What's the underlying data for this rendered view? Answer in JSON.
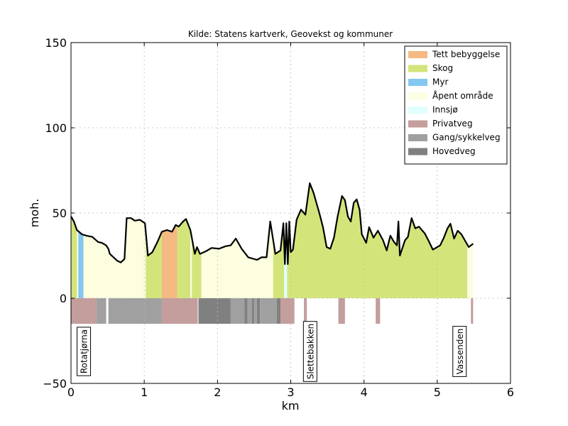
{
  "chart_data": {
    "type": "profile",
    "title": "Kilde: Statens kartverk, Geovekst og kommuner",
    "x_label": "km",
    "y_label": "moh.",
    "xlim": [
      0,
      6
    ],
    "ylim": [
      -50,
      150
    ],
    "xticks": [
      0,
      1,
      2,
      3,
      4,
      5,
      6
    ],
    "yticks": [
      {
        "value": -50,
        "label": "−50"
      },
      0,
      50,
      100,
      150
    ],
    "grid": true,
    "line_color": "#000000",
    "x": [
      0,
      0.04,
      0.08,
      0.15,
      0.21,
      0.29,
      0.37,
      0.42,
      0.48,
      0.51,
      0.53,
      0.63,
      0.68,
      0.73,
      0.76,
      0.82,
      0.87,
      0.94,
      1.01,
      1.05,
      1.11,
      1.18,
      1.24,
      1.31,
      1.38,
      1.43,
      1.47,
      1.53,
      1.57,
      1.63,
      1.69,
      1.72,
      1.76,
      1.84,
      1.92,
      2.02,
      2.11,
      2.18,
      2.25,
      2.33,
      2.42,
      2.54,
      2.6,
      2.67,
      2.72,
      2.79,
      2.86,
      2.9,
      2.92,
      2.94,
      2.96,
      2.98,
      3.0,
      3.03,
      3.08,
      3.14,
      3.2,
      3.26,
      3.31,
      3.39,
      3.44,
      3.49,
      3.54,
      3.59,
      3.64,
      3.7,
      3.74,
      3.78,
      3.82,
      3.86,
      3.9,
      3.94,
      3.97,
      4.03,
      4.07,
      4.13,
      4.19,
      4.26,
      4.31,
      4.36,
      4.41,
      4.45,
      4.47,
      4.49,
      4.56,
      4.6,
      4.65,
      4.7,
      4.75,
      4.83,
      4.89,
      4.94,
      5.04,
      5.09,
      5.14,
      5.18,
      5.23,
      5.28,
      5.33,
      5.43,
      5.49
    ],
    "values": [
      48,
      45,
      40,
      37.5,
      36.7,
      36,
      33,
      32.5,
      31,
      29,
      26,
      22,
      21,
      23,
      47,
      47,
      45.5,
      46,
      44,
      25,
      27,
      33,
      39,
      40,
      39,
      43,
      42,
      45,
      46.5,
      40,
      26,
      30,
      26,
      27.5,
      29.5,
      29,
      30.5,
      31,
      35,
      29,
      24,
      22.5,
      24,
      24,
      45,
      26,
      28,
      44,
      20,
      44,
      20,
      45,
      27,
      28.5,
      46,
      52,
      49,
      67.5,
      62,
      50,
      41.7,
      30,
      29,
      35.5,
      48,
      60,
      57.5,
      48,
      45,
      56,
      58,
      52,
      37.5,
      32.5,
      41.7,
      35.5,
      39.6,
      34,
      28,
      36.7,
      33,
      31,
      45,
      25,
      34,
      36,
      47,
      41,
      42,
      38,
      33,
      28.5,
      31,
      35.5,
      41,
      43.7,
      35,
      39.6,
      37.5,
      30,
      32
    ],
    "classes": [
      {
        "name": "Tett bebyggelse",
        "color": "#f5b982"
      },
      {
        "name": "Skog",
        "color": "#d3e57a"
      },
      {
        "name": "Myr",
        "color": "#82c8f0"
      },
      {
        "name": "Åpent område",
        "color": "#fdfde0"
      },
      {
        "name": "Innsjø",
        "color": "#e0ffff"
      },
      {
        "name": "Privatveg",
        "color": "#c49d9d"
      },
      {
        "name": "Gang/sykkelveg",
        "color": "#a0a0a0"
      },
      {
        "name": "Hovedveg",
        "color": "#808080"
      }
    ],
    "landcover": [
      {
        "start": 0,
        "end": 0.08,
        "class": "Skog"
      },
      {
        "start": 0.08,
        "end": 0.1,
        "class": "Åpent område"
      },
      {
        "start": 0.1,
        "end": 0.17,
        "class": "Myr"
      },
      {
        "start": 0.17,
        "end": 1.02,
        "class": "Åpent område"
      },
      {
        "start": 1.02,
        "end": 1.24,
        "class": "Skog"
      },
      {
        "start": 1.24,
        "end": 1.45,
        "class": "Tett bebyggelse"
      },
      {
        "start": 1.45,
        "end": 1.63,
        "class": "Skog"
      },
      {
        "start": 1.63,
        "end": 1.65,
        "class": "Åpent område"
      },
      {
        "start": 1.65,
        "end": 1.78,
        "class": "Skog"
      },
      {
        "start": 1.78,
        "end": 2.76,
        "class": "Åpent område"
      },
      {
        "start": 2.76,
        "end": 2.91,
        "class": "Skog"
      },
      {
        "start": 2.91,
        "end": 2.95,
        "class": "Innsjø"
      },
      {
        "start": 2.95,
        "end": 5.41,
        "class": "Skog"
      },
      {
        "start": 5.41,
        "end": 5.5,
        "class": "Åpent område"
      }
    ],
    "road_bottom": -15,
    "roads": [
      {
        "start": 0,
        "end": 0.35,
        "class": "Privatveg"
      },
      {
        "start": 0.35,
        "end": 0.48,
        "class": "Gang/sykkelveg"
      },
      {
        "start": 0.51,
        "end": 1.24,
        "class": "Gang/sykkelveg"
      },
      {
        "start": 1.24,
        "end": 1.73,
        "class": "Privatveg"
      },
      {
        "start": 1.74,
        "end": 2.18,
        "class": "Hovedveg"
      },
      {
        "start": 2.18,
        "end": 2.37,
        "class": "Gang/sykkelveg"
      },
      {
        "start": 2.37,
        "end": 2.41,
        "class": "Hovedveg"
      },
      {
        "start": 2.41,
        "end": 2.47,
        "class": "Gang/sykkelveg"
      },
      {
        "start": 2.47,
        "end": 2.5,
        "class": "Hovedveg"
      },
      {
        "start": 2.5,
        "end": 2.54,
        "class": "Gang/sykkelveg"
      },
      {
        "start": 2.54,
        "end": 2.58,
        "class": "Hovedveg"
      },
      {
        "start": 2.58,
        "end": 2.81,
        "class": "Gang/sykkelveg"
      },
      {
        "start": 2.81,
        "end": 2.86,
        "class": "Hovedveg"
      },
      {
        "start": 2.86,
        "end": 3.05,
        "class": "Privatveg"
      },
      {
        "start": 3.18,
        "end": 3.22,
        "class": "Privatveg"
      },
      {
        "start": 3.65,
        "end": 3.74,
        "class": "Privatveg"
      },
      {
        "start": 4.16,
        "end": 4.22,
        "class": "Privatveg"
      },
      {
        "start": 5.46,
        "end": 5.49,
        "class": "Privatveg"
      }
    ],
    "places": [
      {
        "label": "Rotatjørna",
        "x": 0.17
      },
      {
        "label": "Slettebakken",
        "x": 3.26
      },
      {
        "label": "Vassenden",
        "x": 5.3
      }
    ]
  }
}
